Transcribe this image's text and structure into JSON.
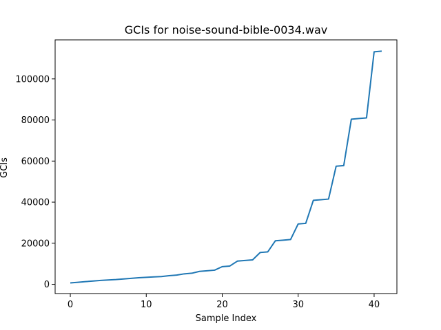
{
  "chart_data": {
    "type": "line",
    "title": "GCIs for noise-sound-bible-0034.wav",
    "xlabel": "Sample Index",
    "ylabel": "GCIs",
    "xlim": [
      -2,
      43
    ],
    "ylim": [
      -4500,
      119000
    ],
    "xticks": [
      0,
      10,
      20,
      30,
      40
    ],
    "yticks": [
      0,
      20000,
      40000,
      60000,
      80000,
      100000
    ],
    "grid": false,
    "line_color": "#1f77b4",
    "series": [
      {
        "x": [
          0,
          1,
          2,
          3,
          4,
          5,
          6,
          7,
          8,
          9,
          10,
          11,
          12,
          13,
          14,
          15,
          16,
          17,
          18,
          19,
          20,
          21,
          22,
          23,
          24,
          25,
          26,
          27,
          28,
          29,
          30,
          31,
          32,
          33,
          34,
          35,
          36,
          37,
          38,
          39,
          40,
          41
        ],
        "values": [
          700,
          1000,
          1300,
          1600,
          1900,
          2100,
          2300,
          2600,
          2900,
          3200,
          3400,
          3600,
          3800,
          4200,
          4500,
          5100,
          5400,
          6300,
          6600,
          6900,
          8600,
          8900,
          11300,
          11600,
          11900,
          15500,
          15800,
          21200,
          21500,
          21800,
          29400,
          29700,
          40900,
          41200,
          41500,
          57500,
          57800,
          80400,
          80700,
          81000,
          113200,
          113500
        ]
      }
    ]
  }
}
